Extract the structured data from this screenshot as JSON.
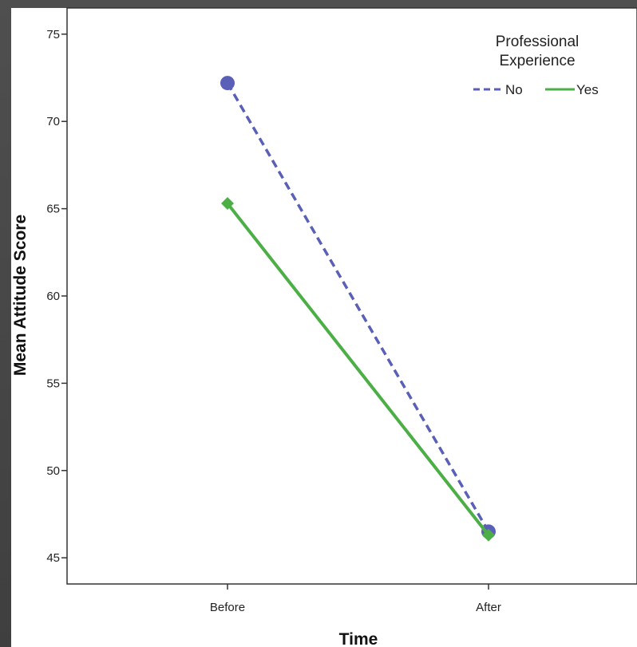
{
  "chart_data": {
    "type": "line",
    "categories": [
      "Before",
      "After"
    ],
    "xlabel": "Time",
    "ylabel": "Mean Attitude Score",
    "ylim": [
      43.5,
      76.5
    ],
    "yticks": [
      45,
      50,
      55,
      60,
      65,
      70,
      75
    ],
    "grid": false,
    "legend": {
      "title_line1": "Professional",
      "title_line2": "Experience",
      "placement": "top-right"
    },
    "series": [
      {
        "name": "No",
        "values": [
          72.2,
          46.5
        ],
        "color": "#5a5fb7",
        "line_style": "dashed",
        "marker": "circle"
      },
      {
        "name": "Yes",
        "values": [
          65.3,
          46.3
        ],
        "color": "#4caf46",
        "line_style": "solid",
        "marker": "diamond"
      }
    ]
  }
}
